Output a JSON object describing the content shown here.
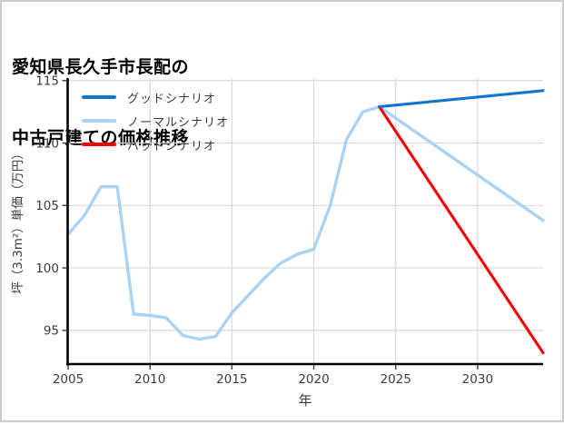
{
  "page": {
    "background": "#ffffff",
    "border_color": "#c9cccf"
  },
  "chart_data": {
    "type": "line",
    "title_line1": "愛知県長久手市長配の",
    "title_line2": "中古戸建ての価格推移",
    "xlabel": "年",
    "ylabel": "坪（3.3m²）単価（万円）",
    "xlim": [
      2005,
      2034
    ],
    "ylim": [
      92.3,
      115.2
    ],
    "xticks": [
      2005,
      2010,
      2015,
      2020,
      2025,
      2030
    ],
    "yticks": [
      95,
      100,
      105,
      110,
      115
    ],
    "grid": true,
    "grid_color": "#d9d9d9",
    "axis_color": "#000000",
    "tick_label_color": "#3d3d3d",
    "legend_position": "upper-left",
    "paint_order": [
      "normal",
      "bad",
      "good"
    ],
    "series": [
      {
        "key": "good",
        "name": "グッドシナリオ",
        "color": "#1274cd",
        "x": [
          2024,
          2034
        ],
        "y": [
          112.9,
          114.2
        ]
      },
      {
        "key": "normal",
        "name": "ノーマルシナリオ",
        "color": "#a9d2f3",
        "x": [
          2005,
          2006,
          2007,
          2008,
          2009,
          2010,
          2011,
          2012,
          2013,
          2014,
          2015,
          2016,
          2017,
          2018,
          2019,
          2020,
          2021,
          2022,
          2023,
          2024,
          2034
        ],
        "y": [
          102.7,
          104.2,
          106.5,
          106.5,
          96.3,
          96.2,
          96.0,
          94.6,
          94.3,
          94.5,
          96.4,
          97.8,
          99.2,
          100.4,
          101.1,
          101.5,
          105.0,
          110.3,
          112.5,
          112.9,
          103.8
        ]
      },
      {
        "key": "bad",
        "name": "バッドシナリオ",
        "color": "#fa0000",
        "x": [
          2024,
          2034
        ],
        "y": [
          112.9,
          93.2
        ]
      }
    ]
  }
}
